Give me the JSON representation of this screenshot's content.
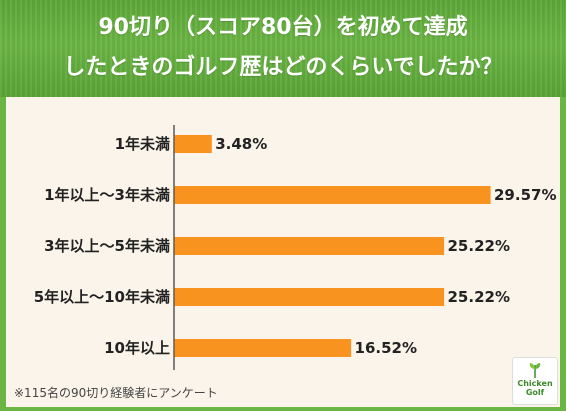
{
  "header": {
    "title_line1": "90切り（スコア80台）を初めて達成",
    "title_line2": "したときのゴルフ歴はどのくらいでしたか？"
  },
  "chart_data": {
    "type": "bar",
    "orientation": "horizontal",
    "categories": [
      "1年未満",
      "1年以上～3年未満",
      "3年以上～5年未満",
      "5年以上～10年未満",
      "10年以上"
    ],
    "values": [
      3.48,
      29.57,
      25.22,
      25.22,
      16.52
    ],
    "value_labels": [
      "3.48%",
      "29.57%",
      "25.22%",
      "25.22%",
      "16.52%"
    ],
    "bar_color": "#f7931e",
    "grid": false,
    "legend": "none"
  },
  "footnote": "※115名の90切り経験者にアンケート",
  "logo": {
    "line1": "Chicken",
    "line2": "Golf"
  },
  "colors": {
    "header_green": "#6bb545",
    "background": "#fbf4ea",
    "axis": "#333333"
  }
}
